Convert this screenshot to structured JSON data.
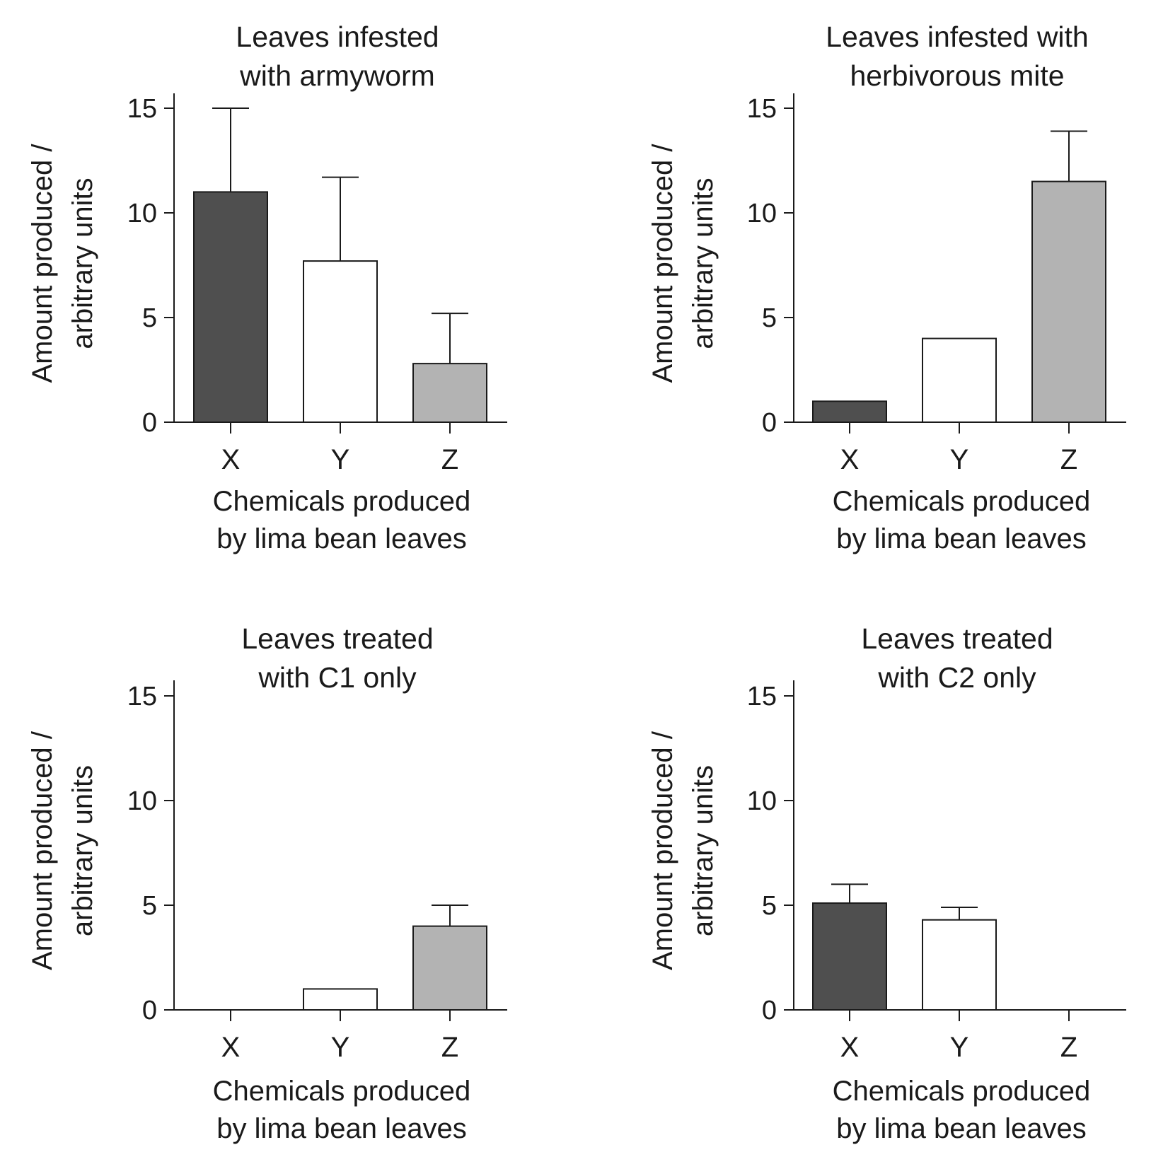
{
  "charts_x_label": [
    "Chemicals produced",
    "by lima bean leaves"
  ],
  "charts_y_label": [
    "Amount produced /",
    "arbitrary units"
  ],
  "colors": {
    "X": "#4f4f4f",
    "Y": "#ffffff",
    "Z": "#b3b3b3",
    "ink": "#1a1a1a"
  },
  "chart_data": [
    {
      "type": "bar",
      "title": [
        "Leaves infested",
        "with armyworm"
      ],
      "categories": [
        "X",
        "Y",
        "Z"
      ],
      "values": [
        11,
        7.7,
        2.8
      ],
      "error_upper": [
        15,
        11.7,
        5.2
      ],
      "ylim": [
        0,
        15
      ],
      "yticks": [
        0,
        5,
        10,
        15
      ],
      "xlabel": [
        "Chemicals produced",
        "by lima bean leaves"
      ],
      "ylabel": [
        "Amount produced /",
        "arbitrary units"
      ],
      "grid": false
    },
    {
      "type": "bar",
      "title": [
        "Leaves infested with",
        "herbivorous mite"
      ],
      "categories": [
        "X",
        "Y",
        "Z"
      ],
      "values": [
        1,
        4,
        11.5
      ],
      "error_upper": [
        null,
        null,
        13.9
      ],
      "ylim": [
        0,
        15
      ],
      "yticks": [
        0,
        5,
        10,
        15
      ],
      "xlabel": [
        "Chemicals produced",
        "by lima bean leaves"
      ],
      "ylabel": [
        "Amount produced /",
        "arbitrary units"
      ],
      "grid": false
    },
    {
      "type": "bar",
      "title": [
        "Leaves treated",
        "with C1 only"
      ],
      "categories": [
        "X",
        "Y",
        "Z"
      ],
      "values": [
        0,
        1,
        4
      ],
      "error_upper": [
        null,
        null,
        5
      ],
      "ylim": [
        0,
        15
      ],
      "yticks": [
        0,
        5,
        10,
        15
      ],
      "xlabel": [
        "Chemicals produced",
        "by lima bean leaves"
      ],
      "ylabel": [
        "Amount produced /",
        "arbitrary units"
      ],
      "grid": false
    },
    {
      "type": "bar",
      "title": [
        "Leaves treated",
        "with C2 only"
      ],
      "categories": [
        "X",
        "Y",
        "Z"
      ],
      "values": [
        5.1,
        4.3,
        0
      ],
      "error_upper": [
        6,
        4.9,
        null
      ],
      "ylim": [
        0,
        15
      ],
      "yticks": [
        0,
        5,
        10,
        15
      ],
      "xlabel": [
        "Chemicals produced",
        "by lima bean leaves"
      ],
      "ylabel": [
        "Amount produced /",
        "arbitrary units"
      ],
      "grid": false
    }
  ]
}
